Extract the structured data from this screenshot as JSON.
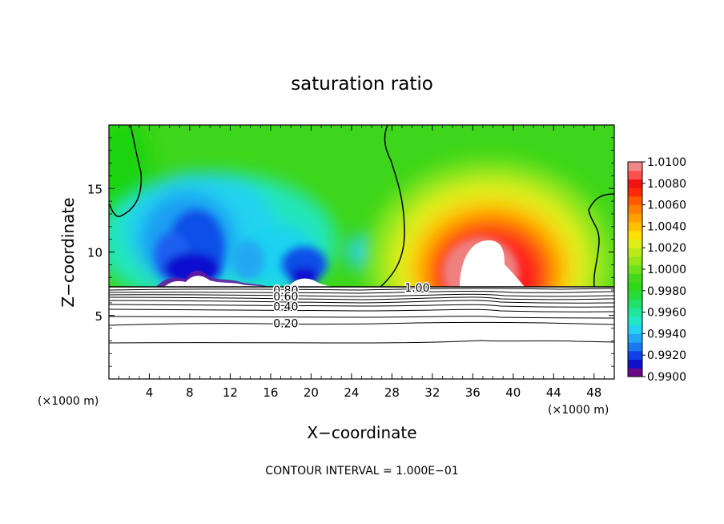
{
  "chart_data": {
    "type": "heatmap",
    "title": "saturation ratio",
    "xlabel": "X−coordinate",
    "ylabel": "Z−coordinate",
    "x_unit_left": "(×1000 m)",
    "x_unit_right": "(×1000 m)",
    "footer": "CONTOUR INTERVAL = 1.000E−01",
    "xlim": [
      0,
      50
    ],
    "ylim": [
      0,
      20
    ],
    "x_ticks": [
      4,
      8,
      12,
      16,
      20,
      24,
      28,
      32,
      36,
      40,
      44,
      48
    ],
    "x_tick_labels": [
      "4",
      "8",
      "12",
      "16",
      "20",
      "24",
      "28",
      "32",
      "36",
      "40",
      "44",
      "48"
    ],
    "y_ticks": [
      5,
      10,
      15
    ],
    "y_tick_labels": [
      "5",
      "10",
      "15"
    ],
    "colorbar": {
      "range": [
        0.99,
        1.01
      ],
      "labels": [
        "1.0100",
        "1.0080",
        "1.0060",
        "1.0040",
        "1.0020",
        "1.0000",
        "0.9980",
        "0.9960",
        "0.9940",
        "0.9920",
        "0.9900"
      ]
    },
    "contour_labels": [
      {
        "text": "0.80",
        "x": 17.5,
        "y": 7.0
      },
      {
        "text": "0.60",
        "x": 17.5,
        "y": 6.5
      },
      {
        "text": "0.40",
        "x": 17.5,
        "y": 5.7
      },
      {
        "text": "0.20",
        "x": 17.5,
        "y": 4.4
      },
      {
        "text": "1.00",
        "x": 30.5,
        "y": 7.2
      }
    ]
  }
}
